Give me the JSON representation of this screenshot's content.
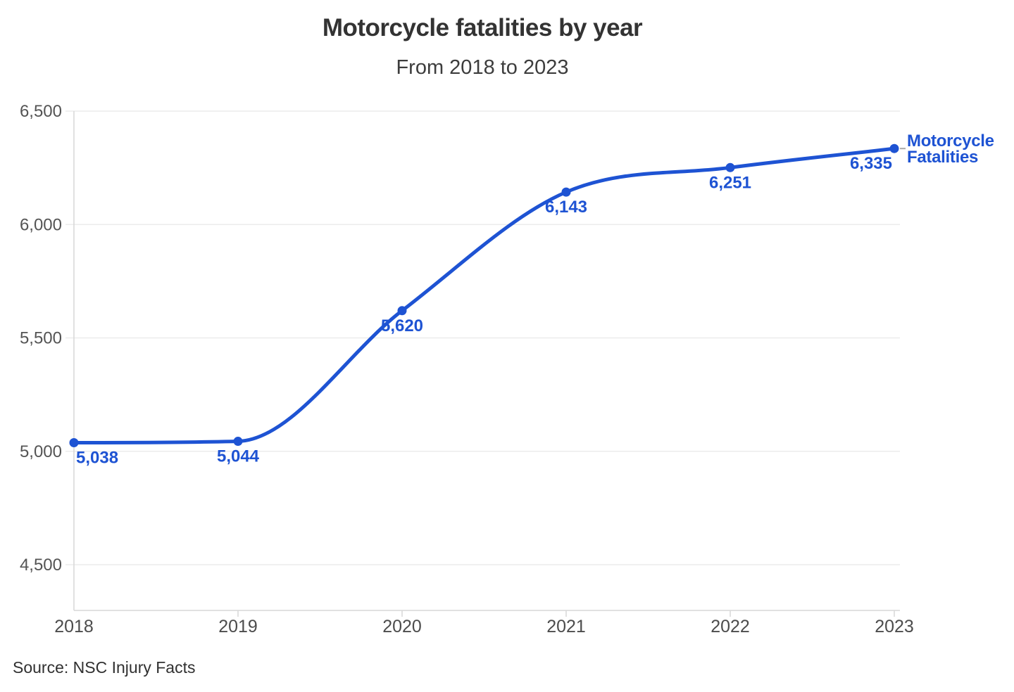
{
  "chart_data": {
    "type": "line",
    "title": "Motorcycle fatalities by year",
    "subtitle": "From 2018 to 2023",
    "source": "Source: NSC Injury Facts",
    "categories": [
      "2018",
      "2019",
      "2020",
      "2021",
      "2022",
      "2023"
    ],
    "series": [
      {
        "name": "Motorcycle Fatalities",
        "values": [
          5038,
          5044,
          5620,
          6143,
          6251,
          6335
        ],
        "point_labels": [
          "5,038",
          "5,044",
          "5,620",
          "6,143",
          "6,251",
          "6,335"
        ]
      }
    ],
    "y_axis": {
      "tick_values": [
        6500,
        6000,
        5500,
        5000,
        4500
      ],
      "tick_labels": [
        "6,500",
        "6,000",
        "5,500",
        "5,000",
        "4,500"
      ],
      "range_shown": [
        4500,
        6500
      ]
    },
    "x_axis": {
      "label_style": "year"
    },
    "grid": "horizontal",
    "legend_position": "line-end",
    "colors": {
      "line": "#1e53d3",
      "point_label": "#1e53d3",
      "series_label": "#1e53d3",
      "leader_dash": "#a8a8a8",
      "gridline": "#ececec",
      "axis_line": "#d7d7d7",
      "title_text": "#333333",
      "axis_text": "#545454"
    }
  }
}
